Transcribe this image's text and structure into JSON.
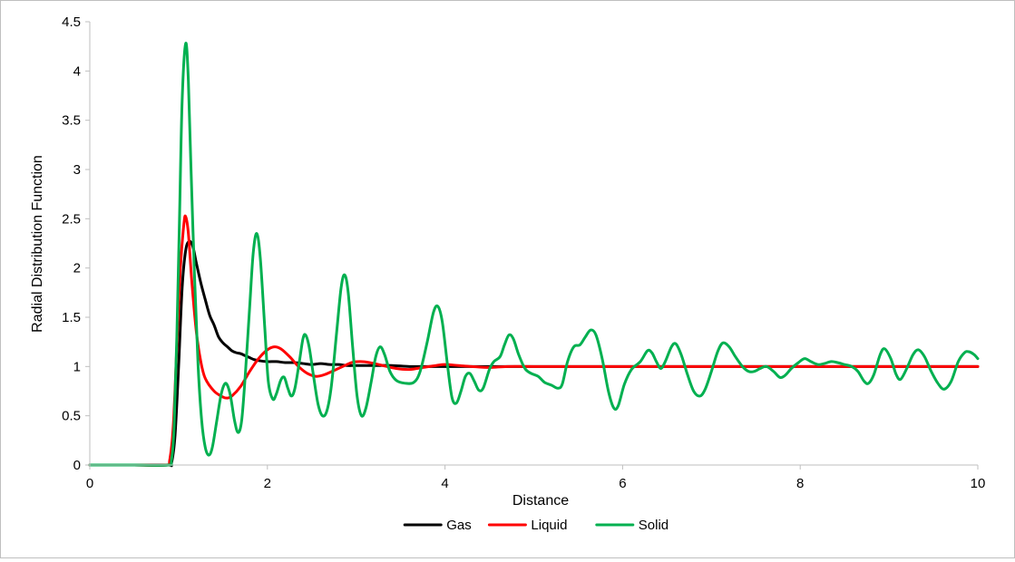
{
  "chart_data": {
    "type": "line",
    "title": "",
    "xlabel": "Distance",
    "ylabel": "Radial Distribution Function",
    "xlim": [
      0,
      10
    ],
    "ylim": [
      0,
      4.5
    ],
    "xticks": [
      0,
      2,
      4,
      6,
      8,
      10
    ],
    "yticks": [
      0,
      0.5,
      1,
      1.5,
      2,
      2.5,
      3,
      3.5,
      4,
      4.5
    ],
    "x_tick_labels": [
      "0",
      "2",
      "4",
      "6",
      "8",
      "10"
    ],
    "y_tick_labels": [
      "0",
      "0.5",
      "1",
      "1.5",
      "2",
      "2.5",
      "3",
      "3.5",
      "4",
      "4.5"
    ],
    "grid": false,
    "legend_position": "bottom",
    "series": [
      {
        "name": "Gas",
        "color": "#000000",
        "points": [
          [
            0,
            0
          ],
          [
            0.5,
            0
          ],
          [
            0.88,
            0
          ],
          [
            0.92,
            0.02
          ],
          [
            0.96,
            0.3
          ],
          [
            1.0,
            1.0
          ],
          [
            1.04,
            1.8
          ],
          [
            1.08,
            2.18
          ],
          [
            1.12,
            2.27
          ],
          [
            1.16,
            2.22
          ],
          [
            1.2,
            2.05
          ],
          [
            1.25,
            1.85
          ],
          [
            1.3,
            1.68
          ],
          [
            1.35,
            1.52
          ],
          [
            1.4,
            1.42
          ],
          [
            1.45,
            1.3
          ],
          [
            1.5,
            1.24
          ],
          [
            1.55,
            1.2
          ],
          [
            1.6,
            1.16
          ],
          [
            1.65,
            1.14
          ],
          [
            1.7,
            1.13
          ],
          [
            1.75,
            1.11
          ],
          [
            1.8,
            1.09
          ],
          [
            1.85,
            1.07
          ],
          [
            1.9,
            1.06
          ],
          [
            2.0,
            1.05
          ],
          [
            2.1,
            1.05
          ],
          [
            2.2,
            1.04
          ],
          [
            2.3,
            1.04
          ],
          [
            2.4,
            1.03
          ],
          [
            2.5,
            1.02
          ],
          [
            2.6,
            1.03
          ],
          [
            2.7,
            1.02
          ],
          [
            2.8,
            1.02
          ],
          [
            2.9,
            1.01
          ],
          [
            3.0,
            1.01
          ],
          [
            3.2,
            1.01
          ],
          [
            3.4,
            1.01
          ],
          [
            3.6,
            1.0
          ],
          [
            3.8,
            1.0
          ],
          [
            4.0,
            1.0
          ],
          [
            4.5,
            1.0
          ],
          [
            5.0,
            1.0
          ],
          [
            6.0,
            1.0
          ],
          [
            7.0,
            1.0
          ],
          [
            8.0,
            1.0
          ],
          [
            9.0,
            1.0
          ],
          [
            10.0,
            1.0
          ]
        ]
      },
      {
        "name": "Liquid",
        "color": "#ff0000",
        "points": [
          [
            0,
            0
          ],
          [
            0.5,
            0
          ],
          [
            0.86,
            0
          ],
          [
            0.9,
            0.05
          ],
          [
            0.94,
            0.4
          ],
          [
            0.98,
            1.2
          ],
          [
            1.02,
            2.0
          ],
          [
            1.06,
            2.45
          ],
          [
            1.08,
            2.52
          ],
          [
            1.11,
            2.35
          ],
          [
            1.15,
            1.85
          ],
          [
            1.2,
            1.35
          ],
          [
            1.25,
            1.05
          ],
          [
            1.3,
            0.88
          ],
          [
            1.4,
            0.75
          ],
          [
            1.5,
            0.69
          ],
          [
            1.55,
            0.68
          ],
          [
            1.6,
            0.7
          ],
          [
            1.7,
            0.8
          ],
          [
            1.8,
            0.95
          ],
          [
            1.9,
            1.08
          ],
          [
            2.0,
            1.17
          ],
          [
            2.08,
            1.2
          ],
          [
            2.15,
            1.18
          ],
          [
            2.25,
            1.1
          ],
          [
            2.35,
            1.0
          ],
          [
            2.45,
            0.93
          ],
          [
            2.55,
            0.9
          ],
          [
            2.65,
            0.92
          ],
          [
            2.8,
            0.98
          ],
          [
            2.95,
            1.04
          ],
          [
            3.05,
            1.05
          ],
          [
            3.15,
            1.04
          ],
          [
            3.3,
            1.01
          ],
          [
            3.45,
            0.98
          ],
          [
            3.6,
            0.97
          ],
          [
            3.75,
            0.99
          ],
          [
            3.9,
            1.01
          ],
          [
            4.0,
            1.02
          ],
          [
            4.15,
            1.01
          ],
          [
            4.3,
            1.0
          ],
          [
            4.5,
            0.99
          ],
          [
            4.7,
            1.0
          ],
          [
            5.0,
            1.0
          ],
          [
            5.5,
            1.0
          ],
          [
            6.0,
            1.0
          ],
          [
            6.5,
            1.0
          ],
          [
            7.0,
            1.0
          ],
          [
            7.5,
            1.0
          ],
          [
            8.0,
            1.0
          ],
          [
            8.5,
            1.0
          ],
          [
            9.0,
            1.0
          ],
          [
            9.5,
            1.0
          ],
          [
            10.0,
            1.0
          ]
        ]
      },
      {
        "name": "Solid",
        "color": "#00b050",
        "points": [
          [
            0,
            0
          ],
          [
            0.5,
            0
          ],
          [
            0.88,
            0
          ],
          [
            0.92,
            0.05
          ],
          [
            0.95,
            0.4
          ],
          [
            0.98,
            1.3
          ],
          [
            1.01,
            2.5
          ],
          [
            1.04,
            3.7
          ],
          [
            1.08,
            4.28
          ],
          [
            1.11,
            3.9
          ],
          [
            1.14,
            3.0
          ],
          [
            1.18,
            1.9
          ],
          [
            1.22,
            1.0
          ],
          [
            1.26,
            0.45
          ],
          [
            1.3,
            0.18
          ],
          [
            1.34,
            0.1
          ],
          [
            1.38,
            0.18
          ],
          [
            1.43,
            0.45
          ],
          [
            1.48,
            0.72
          ],
          [
            1.53,
            0.83
          ],
          [
            1.58,
            0.72
          ],
          [
            1.63,
            0.45
          ],
          [
            1.67,
            0.33
          ],
          [
            1.71,
            0.45
          ],
          [
            1.75,
            0.9
          ],
          [
            1.8,
            1.6
          ],
          [
            1.84,
            2.15
          ],
          [
            1.88,
            2.35
          ],
          [
            1.92,
            2.1
          ],
          [
            1.97,
            1.4
          ],
          [
            2.01,
            0.85
          ],
          [
            2.06,
            0.67
          ],
          [
            2.1,
            0.72
          ],
          [
            2.15,
            0.86
          ],
          [
            2.19,
            0.89
          ],
          [
            2.23,
            0.78
          ],
          [
            2.27,
            0.7
          ],
          [
            2.31,
            0.78
          ],
          [
            2.36,
            1.05
          ],
          [
            2.4,
            1.28
          ],
          [
            2.43,
            1.32
          ],
          [
            2.47,
            1.2
          ],
          [
            2.52,
            0.9
          ],
          [
            2.57,
            0.62
          ],
          [
            2.62,
            0.5
          ],
          [
            2.67,
            0.55
          ],
          [
            2.72,
            0.8
          ],
          [
            2.78,
            1.35
          ],
          [
            2.83,
            1.8
          ],
          [
            2.87,
            1.93
          ],
          [
            2.91,
            1.75
          ],
          [
            2.96,
            1.2
          ],
          [
            3.01,
            0.7
          ],
          [
            3.06,
            0.5
          ],
          [
            3.11,
            0.58
          ],
          [
            3.17,
            0.85
          ],
          [
            3.22,
            1.1
          ],
          [
            3.27,
            1.2
          ],
          [
            3.32,
            1.12
          ],
          [
            3.38,
            0.95
          ],
          [
            3.45,
            0.86
          ],
          [
            3.55,
            0.83
          ],
          [
            3.65,
            0.84
          ],
          [
            3.72,
            0.95
          ],
          [
            3.8,
            1.25
          ],
          [
            3.87,
            1.55
          ],
          [
            3.92,
            1.61
          ],
          [
            3.97,
            1.45
          ],
          [
            4.03,
            1.0
          ],
          [
            4.08,
            0.68
          ],
          [
            4.13,
            0.63
          ],
          [
            4.18,
            0.75
          ],
          [
            4.23,
            0.9
          ],
          [
            4.28,
            0.93
          ],
          [
            4.33,
            0.85
          ],
          [
            4.38,
            0.76
          ],
          [
            4.43,
            0.78
          ],
          [
            4.5,
            0.97
          ],
          [
            4.55,
            1.05
          ],
          [
            4.62,
            1.1
          ],
          [
            4.67,
            1.22
          ],
          [
            4.72,
            1.32
          ],
          [
            4.77,
            1.28
          ],
          [
            4.83,
            1.12
          ],
          [
            4.9,
            0.98
          ],
          [
            4.97,
            0.93
          ],
          [
            5.05,
            0.9
          ],
          [
            5.12,
            0.84
          ],
          [
            5.2,
            0.81
          ],
          [
            5.27,
            0.78
          ],
          [
            5.32,
            0.82
          ],
          [
            5.38,
            1.05
          ],
          [
            5.45,
            1.2
          ],
          [
            5.52,
            1.22
          ],
          [
            5.58,
            1.3
          ],
          [
            5.64,
            1.37
          ],
          [
            5.7,
            1.32
          ],
          [
            5.77,
            1.08
          ],
          [
            5.84,
            0.75
          ],
          [
            5.9,
            0.58
          ],
          [
            5.95,
            0.6
          ],
          [
            6.02,
            0.82
          ],
          [
            6.1,
            0.97
          ],
          [
            6.2,
            1.05
          ],
          [
            6.28,
            1.16
          ],
          [
            6.33,
            1.14
          ],
          [
            6.38,
            1.05
          ],
          [
            6.43,
            0.98
          ],
          [
            6.48,
            1.05
          ],
          [
            6.55,
            1.2
          ],
          [
            6.6,
            1.23
          ],
          [
            6.66,
            1.12
          ],
          [
            6.73,
            0.92
          ],
          [
            6.8,
            0.75
          ],
          [
            6.87,
            0.7
          ],
          [
            6.93,
            0.77
          ],
          [
            7.0,
            0.95
          ],
          [
            7.07,
            1.15
          ],
          [
            7.13,
            1.24
          ],
          [
            7.2,
            1.2
          ],
          [
            7.27,
            1.1
          ],
          [
            7.35,
            1.0
          ],
          [
            7.42,
            0.95
          ],
          [
            7.48,
            0.95
          ],
          [
            7.55,
            0.98
          ],
          [
            7.62,
            1.0
          ],
          [
            7.7,
            0.95
          ],
          [
            7.77,
            0.89
          ],
          [
            7.83,
            0.91
          ],
          [
            7.9,
            0.98
          ],
          [
            7.98,
            1.04
          ],
          [
            8.05,
            1.08
          ],
          [
            8.12,
            1.05
          ],
          [
            8.2,
            1.02
          ],
          [
            8.27,
            1.03
          ],
          [
            8.35,
            1.05
          ],
          [
            8.42,
            1.04
          ],
          [
            8.5,
            1.02
          ],
          [
            8.58,
            1.0
          ],
          [
            8.65,
            0.95
          ],
          [
            8.72,
            0.85
          ],
          [
            8.77,
            0.83
          ],
          [
            8.83,
            0.92
          ],
          [
            8.9,
            1.12
          ],
          [
            8.95,
            1.18
          ],
          [
            9.02,
            1.08
          ],
          [
            9.08,
            0.92
          ],
          [
            9.13,
            0.87
          ],
          [
            9.2,
            0.98
          ],
          [
            9.27,
            1.12
          ],
          [
            9.33,
            1.17
          ],
          [
            9.4,
            1.1
          ],
          [
            9.47,
            0.96
          ],
          [
            9.55,
            0.83
          ],
          [
            9.62,
            0.77
          ],
          [
            9.7,
            0.85
          ],
          [
            9.78,
            1.05
          ],
          [
            9.85,
            1.14
          ],
          [
            9.9,
            1.15
          ],
          [
            9.96,
            1.12
          ],
          [
            10.0,
            1.08
          ]
        ]
      }
    ]
  }
}
